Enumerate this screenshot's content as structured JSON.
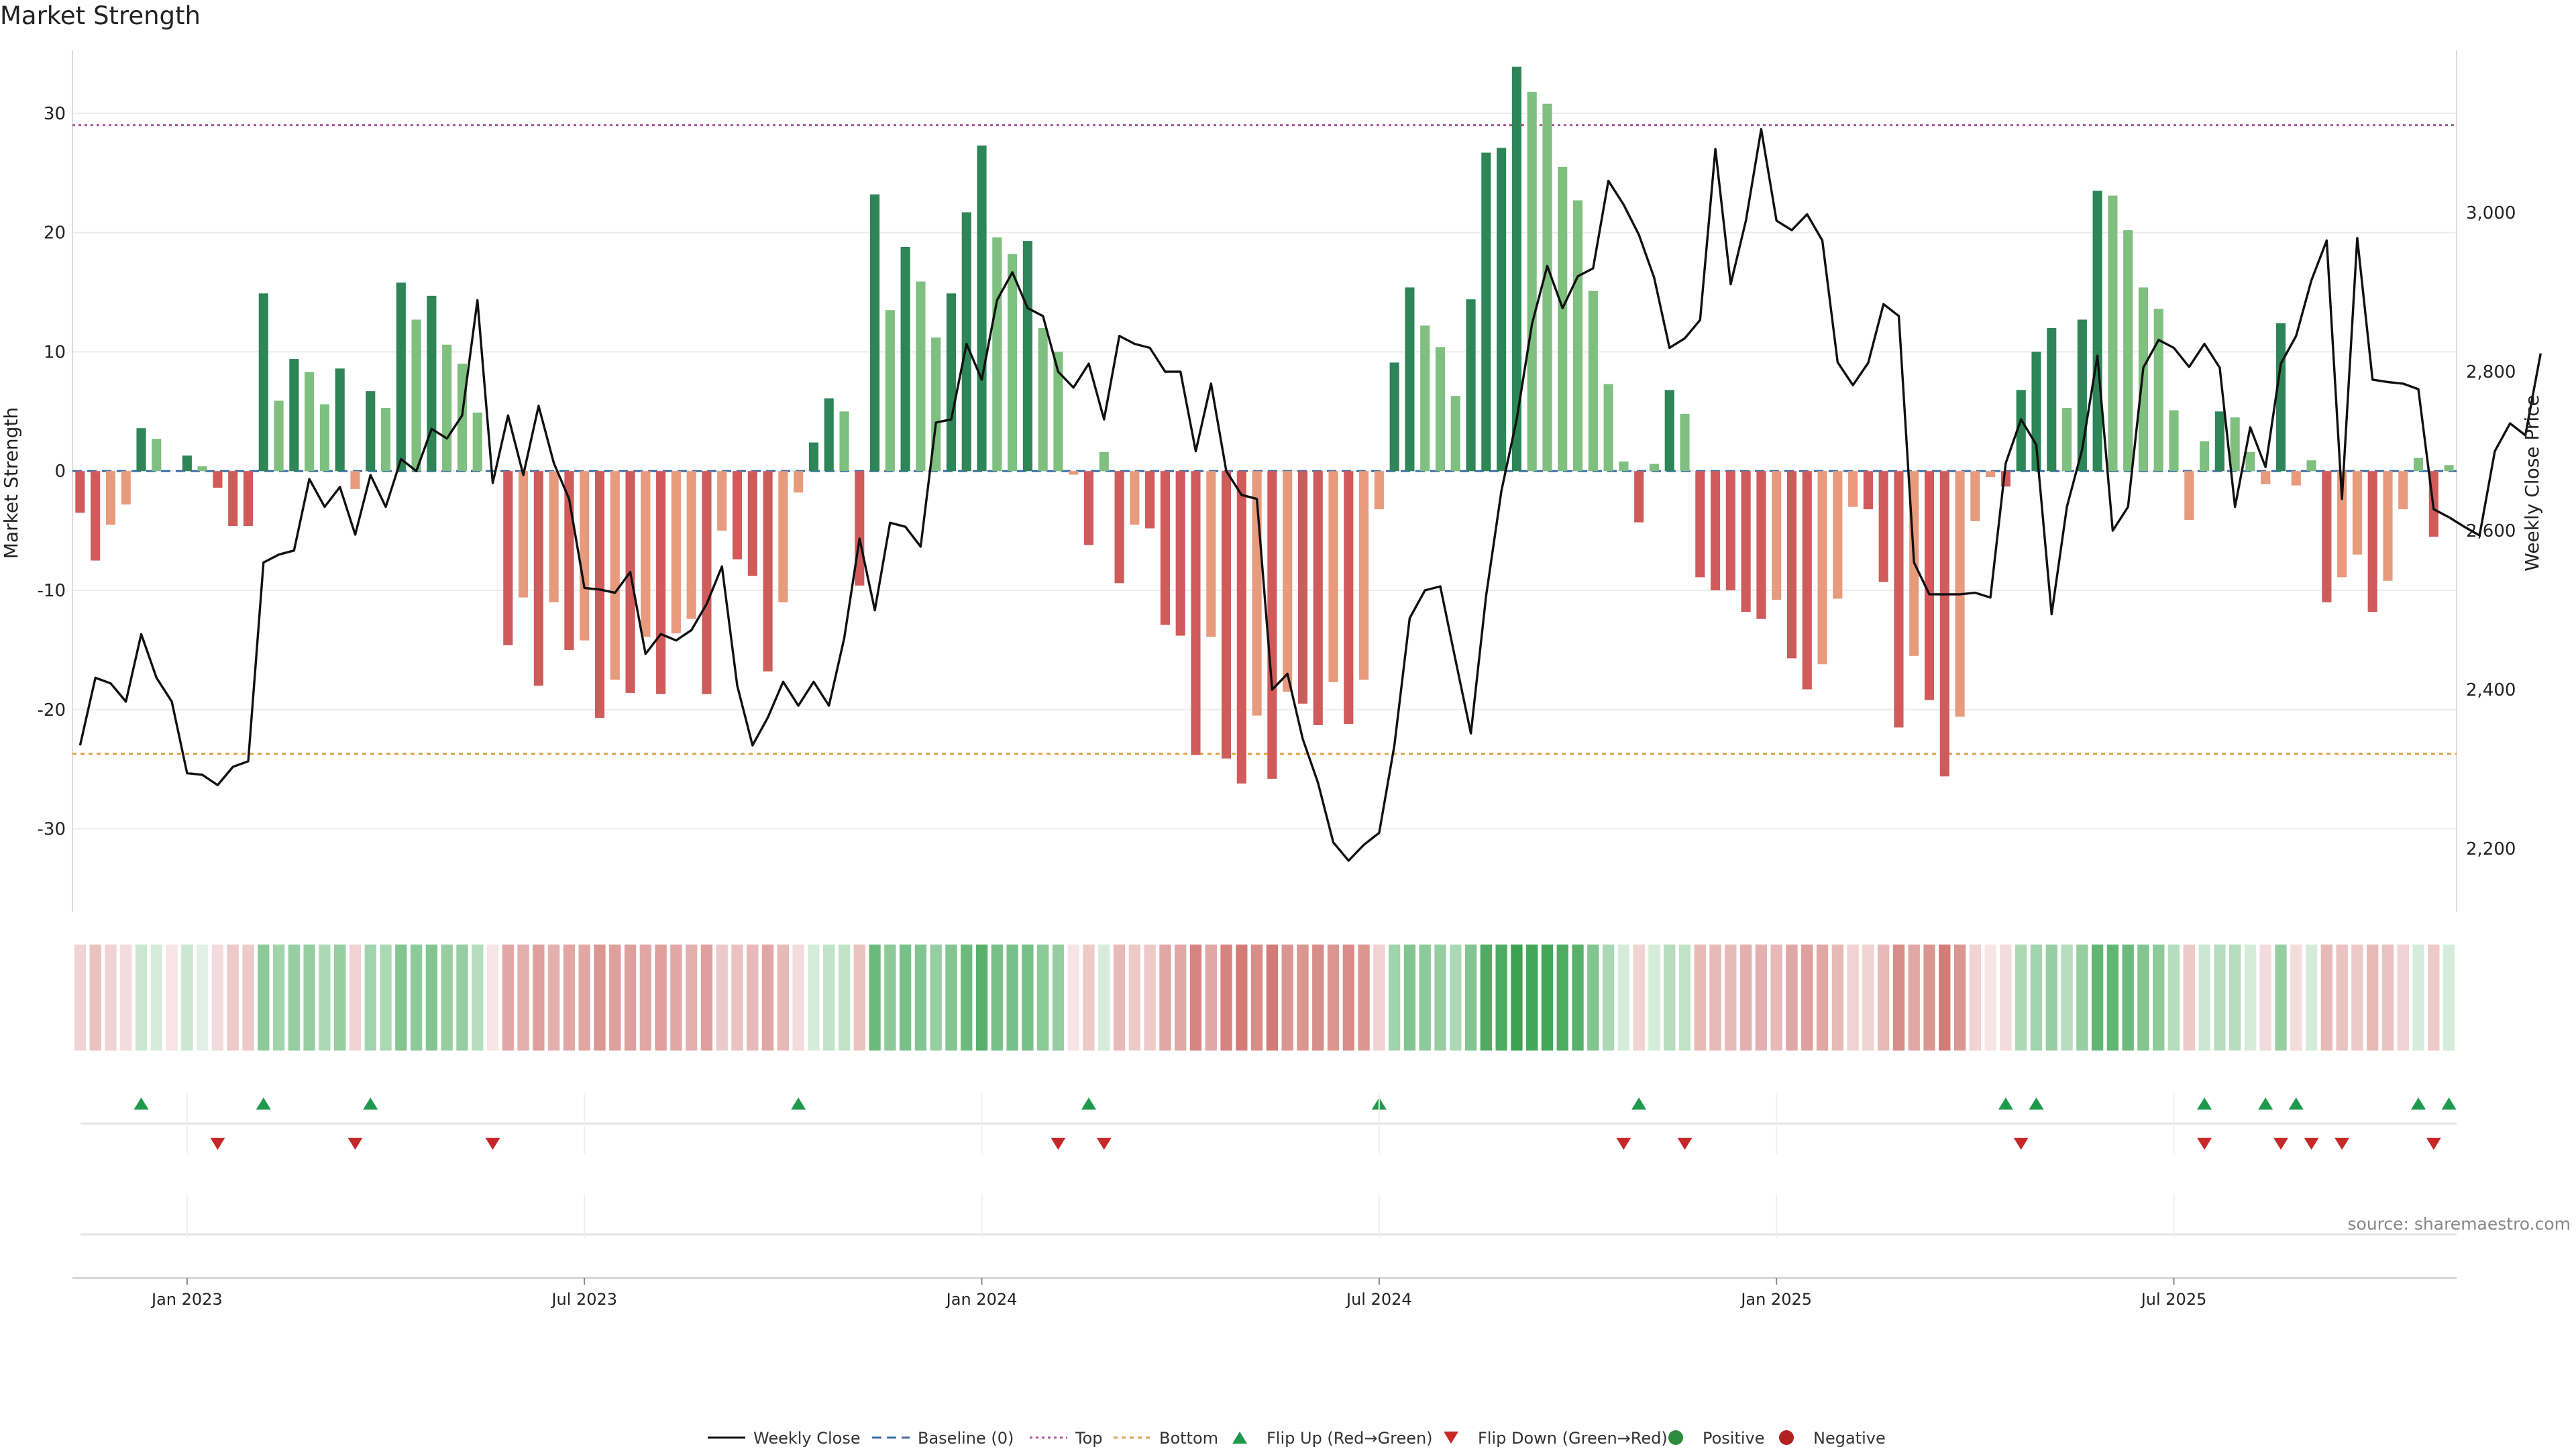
{
  "title": "Market Strength",
  "source_note": "source: sharemaestro.com",
  "colors": {
    "pos_strong": "#2e8557",
    "pos_light": "#7fbf80",
    "neg_strong": "#cf5b5b",
    "neg_light": "#e89a7c",
    "price_line": "#111111",
    "top_line": "#a9579b",
    "bottom_line": "#e5a24a",
    "baseline": "#3d6fa6",
    "flip_up": "#1f9a4d",
    "flip_down": "#c62828"
  },
  "chart_data": {
    "type": "bar",
    "title": "Market Strength",
    "ylabel": "Market Strength",
    "y2label": "Weekly Close Price",
    "ylim": [
      -37,
      35
    ],
    "y2lim": [
      2120,
      3200
    ],
    "yticks": [
      -30,
      -20,
      -10,
      0,
      10,
      20,
      30
    ],
    "y2ticks": [
      2200,
      2400,
      2600,
      2800,
      3000
    ],
    "y2tick_labels": [
      "2,200",
      "2,400",
      "2,600",
      "2,800",
      "3,000"
    ],
    "top_level": 29,
    "bottom_level": -23.7,
    "x_ticks": [
      {
        "index": 7,
        "label": "Jan 2023"
      },
      {
        "index": 33,
        "label": "Jul 2023"
      },
      {
        "index": 59,
        "label": "Jan 2024"
      },
      {
        "index": 85,
        "label": "Jul 2024"
      },
      {
        "index": 111,
        "label": "Jan 2025"
      },
      {
        "index": 137,
        "label": "Jul 2025"
      }
    ],
    "strength": [
      -3.5,
      -7.5,
      -4.5,
      -2.8,
      3.6,
      2.7,
      0,
      1.3,
      0.4,
      -1.4,
      -4.6,
      -4.6,
      14.9,
      5.9,
      9.4,
      8.3,
      5.6,
      8.6,
      -1.5,
      6.7,
      5.3,
      15.8,
      12.7,
      14.7,
      10.6,
      9,
      4.9,
      0,
      -14.6,
      -10.6,
      -18,
      -11,
      -15,
      -14.2,
      -20.7,
      -17.5,
      -18.6,
      -13.9,
      -18.7,
      -13.6,
      -12.4,
      -18.7,
      -5,
      -7.4,
      -8.8,
      -16.8,
      -11,
      -1.8,
      2.4,
      6.1,
      5,
      -9.6,
      23.2,
      13.5,
      18.8,
      15.9,
      11.2,
      14.9,
      21.7,
      27.3,
      19.6,
      18.2,
      19.3,
      12,
      10,
      -0.3,
      -6.2,
      1.6,
      -9.4,
      -4.5,
      -4.8,
      -12.9,
      -13.8,
      -23.8,
      -13.9,
      -24.1,
      -26.2,
      -20.5,
      -25.8,
      -18.5,
      -19.5,
      -21.3,
      -17.7,
      -21.2,
      -17.5,
      -3.2,
      9.1,
      15.4,
      12.2,
      10.4,
      6.3,
      14.4,
      26.7,
      27.1,
      33.9,
      31.8,
      30.8,
      25.5,
      22.7,
      15.1,
      7.3,
      0.8,
      -4.3,
      0.6,
      6.8,
      4.8,
      -8.9,
      -10,
      -10,
      -11.8,
      -12.4,
      -10.8,
      -15.7,
      -18.3,
      -16.2,
      -10.7,
      -3,
      -3.2,
      -9.3,
      -21.5,
      -15.5,
      -19.2,
      -25.6,
      -20.6,
      -4.2,
      -0.5,
      -1.3,
      6.8,
      10,
      12,
      5.3,
      12.7,
      23.5,
      23.1,
      20.2,
      15.4,
      13.6,
      5.1,
      -4.1,
      2.5,
      5,
      4.5,
      1.6,
      -1.1,
      12.4,
      -1.2,
      0.9,
      -11,
      -8.9,
      -7,
      -11.8,
      -9.2,
      -3.2,
      1.1,
      -5.5,
      0.5
    ],
    "close": [
      2330,
      2415,
      2408,
      2385,
      2470,
      2415,
      2385,
      2295,
      2293,
      2280,
      2303,
      2310,
      2560,
      2570,
      2575,
      2665,
      2630,
      2655,
      2595,
      2670,
      2630,
      2690,
      2675,
      2728,
      2716,
      2745,
      2890,
      2660,
      2745,
      2670,
      2757,
      2685,
      2640,
      2528,
      2526,
      2522,
      2548,
      2445,
      2470,
      2462,
      2475,
      2508,
      2555,
      2405,
      2330,
      2365,
      2410,
      2380,
      2410,
      2380,
      2465,
      2590,
      2500,
      2610,
      2605,
      2580,
      2736,
      2740,
      2835,
      2790,
      2890,
      2925,
      2880,
      2870,
      2800,
      2780,
      2810,
      2740,
      2845,
      2835,
      2830,
      2800,
      2800,
      2700,
      2785,
      2675,
      2645,
      2640,
      2400,
      2420,
      2338,
      2283,
      2208,
      2185,
      2205,
      2220,
      2330,
      2490,
      2525,
      2530,
      2437,
      2345,
      2518,
      2650,
      2740,
      2860,
      2933,
      2880,
      2920,
      2930,
      3040,
      3010,
      2972,
      2918,
      2830,
      2842,
      2865,
      3080,
      2910,
      2990,
      3105,
      2990,
      2978,
      2998,
      2965,
      2812,
      2783,
      2811,
      2885,
      2870,
      2560,
      2520,
      2520,
      2520,
      2522,
      2516,
      2685,
      2740,
      2708,
      2495,
      2630,
      2702,
      2820,
      2600,
      2630,
      2805,
      2840,
      2830,
      2806,
      2835,
      2805,
      2630,
      2730,
      2680,
      2810,
      2845,
      2915,
      2965,
      2640,
      2968,
      2790,
      2787,
      2785,
      2778,
      2627,
      2617,
      2605,
      2594,
      2700,
      2735,
      2720,
      2823
    ],
    "cond_alpha": [
      0.25,
      0.35,
      0.25,
      0.2,
      0.25,
      0.2,
      0.15,
      0.25,
      0.15,
      0.2,
      0.3,
      0.3,
      0.55,
      0.45,
      0.5,
      0.5,
      0.4,
      0.5,
      0.25,
      0.45,
      0.4,
      0.6,
      0.55,
      0.6,
      0.5,
      0.5,
      0.35,
      0.15,
      0.5,
      0.45,
      0.55,
      0.45,
      0.5,
      0.5,
      0.6,
      0.55,
      0.55,
      0.5,
      0.55,
      0.5,
      0.45,
      0.55,
      0.3,
      0.35,
      0.4,
      0.5,
      0.4,
      0.2,
      0.2,
      0.3,
      0.3,
      0.35,
      0.7,
      0.55,
      0.65,
      0.6,
      0.5,
      0.6,
      0.7,
      0.8,
      0.65,
      0.65,
      0.65,
      0.55,
      0.5,
      0.15,
      0.3,
      0.2,
      0.4,
      0.3,
      0.3,
      0.5,
      0.5,
      0.7,
      0.5,
      0.7,
      0.75,
      0.65,
      0.75,
      0.6,
      0.6,
      0.65,
      0.6,
      0.65,
      0.6,
      0.25,
      0.45,
      0.6,
      0.55,
      0.5,
      0.4,
      0.6,
      0.85,
      0.85,
      0.95,
      0.9,
      0.9,
      0.85,
      0.8,
      0.6,
      0.4,
      0.2,
      0.25,
      0.2,
      0.35,
      0.3,
      0.4,
      0.4,
      0.4,
      0.45,
      0.45,
      0.4,
      0.5,
      0.55,
      0.5,
      0.4,
      0.25,
      0.25,
      0.4,
      0.65,
      0.5,
      0.6,
      0.75,
      0.6,
      0.25,
      0.15,
      0.2,
      0.4,
      0.45,
      0.5,
      0.35,
      0.5,
      0.75,
      0.75,
      0.7,
      0.6,
      0.55,
      0.35,
      0.3,
      0.25,
      0.35,
      0.35,
      0.2,
      0.2,
      0.5,
      0.2,
      0.2,
      0.4,
      0.35,
      0.3,
      0.4,
      0.35,
      0.25,
      0.2,
      0.3,
      0.2
    ],
    "flip_up_index": [
      4,
      12,
      19,
      47,
      66,
      85,
      102,
      126,
      128,
      139,
      143,
      145,
      153,
      155
    ],
    "flip_down_index": [
      9,
      18,
      27,
      64,
      67,
      101,
      105,
      127,
      139,
      144,
      146,
      148,
      154
    ],
    "legend": [
      "Weekly Close",
      "Baseline (0)",
      "Top",
      "Bottom",
      "Flip Up (Red→Green)",
      "Flip Down (Green→Red)",
      "Positive",
      "Negative"
    ]
  }
}
